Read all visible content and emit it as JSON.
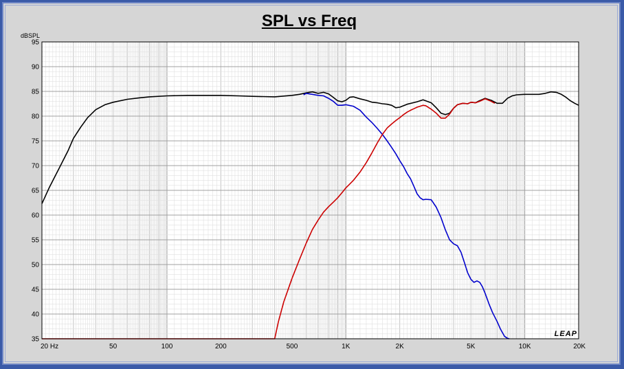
{
  "chart_data": {
    "type": "line",
    "title": "SPL vs Freq",
    "ylabel": "dBSPL",
    "xlabel": "",
    "xscale": "log",
    "xlim": [
      20,
      20000
    ],
    "ylim": [
      35,
      95
    ],
    "grid": true,
    "watermark": "LEAP",
    "background": "#ffffff",
    "yticks": [
      35,
      40,
      45,
      50,
      55,
      60,
      65,
      70,
      75,
      80,
      85,
      90,
      95
    ],
    "xticks": [
      {
        "value": 20,
        "label": "20  Hz"
      },
      {
        "value": 50,
        "label": "50"
      },
      {
        "value": 100,
        "label": "100"
      },
      {
        "value": 200,
        "label": "200"
      },
      {
        "value": 500,
        "label": "500"
      },
      {
        "value": 1000,
        "label": "1K"
      },
      {
        "value": 2000,
        "label": "2K"
      },
      {
        "value": 5000,
        "label": "5K"
      },
      {
        "value": 10000,
        "label": "10K"
      },
      {
        "value": 20000,
        "label": "20K"
      }
    ],
    "series": [
      {
        "color": "#000000",
        "x": [
          20,
          22,
          25,
          28,
          30,
          33,
          36,
          40,
          45,
          50,
          60,
          70,
          80,
          100,
          130,
          160,
          200,
          250,
          300,
          400,
          500,
          550,
          600,
          650,
          700,
          750,
          800,
          850,
          900,
          950,
          1000,
          1050,
          1100,
          1200,
          1300,
          1400,
          1500,
          1600,
          1700,
          1800,
          1900,
          2000,
          2200,
          2500,
          2700,
          3000,
          3200,
          3400,
          3600,
          3800,
          4000,
          4200,
          4500,
          4800,
          5000,
          5300,
          5500,
          6000,
          6500,
          7000,
          7500,
          8000,
          8500,
          9000,
          10000,
          11000,
          12000,
          13000,
          14000,
          15000,
          16000,
          17000,
          18000,
          19000,
          20000
        ],
        "y": [
          62.3,
          65.6,
          69.5,
          73,
          75.5,
          77.8,
          79.7,
          81.3,
          82.3,
          82.8,
          83.4,
          83.7,
          83.9,
          84.1,
          84.2,
          84.2,
          84.2,
          84.1,
          84,
          83.9,
          84.2,
          84.4,
          84.7,
          84.9,
          84.6,
          84.8,
          84.5,
          83.8,
          83.1,
          82.9,
          83.2,
          83.8,
          83.9,
          83.5,
          83.2,
          82.8,
          82.7,
          82.5,
          82.4,
          82.2,
          81.7,
          81.8,
          82.4,
          82.9,
          83.3,
          82.7,
          81.7,
          80.6,
          80.3,
          80.6,
          81.6,
          82.3,
          82.6,
          82.5,
          82.8,
          82.7,
          83,
          83.6,
          83.2,
          82.6,
          82.6,
          83.6,
          84.1,
          84.3,
          84.4,
          84.4,
          84.4,
          84.6,
          84.9,
          84.8,
          84.4,
          83.8,
          83.1,
          82.6,
          82.2
        ]
      },
      {
        "color": "#0000cc",
        "x": [
          580,
          600,
          650,
          700,
          750,
          800,
          850,
          900,
          950,
          1000,
          1100,
          1200,
          1300,
          1400,
          1500,
          1600,
          1700,
          1800,
          1900,
          2000,
          2100,
          2200,
          2300,
          2400,
          2500,
          2600,
          2700,
          2800,
          3000,
          3200,
          3400,
          3600,
          3800,
          4000,
          4200,
          4400,
          4600,
          4800,
          5000,
          5200,
          5400,
          5600,
          5800,
          6000,
          6300,
          6600,
          7000,
          7300,
          7700,
          8000,
          8200
        ],
        "y": [
          84.3,
          84.6,
          84.4,
          84.2,
          84.1,
          83.6,
          83,
          82.2,
          82.2,
          82.3,
          82,
          81.2,
          79.8,
          78.7,
          77.5,
          76.3,
          75,
          73.7,
          72.4,
          71,
          69.8,
          68.4,
          67.3,
          65.8,
          64.3,
          63.5,
          63.1,
          63.2,
          63.1,
          61.6,
          59.5,
          57,
          55,
          54.2,
          53.8,
          52.5,
          50.4,
          48.3,
          47,
          46.4,
          46.7,
          46.4,
          45.5,
          44.2,
          42.1,
          40.3,
          38.5,
          37,
          35.5,
          35.1,
          35
        ]
      },
      {
        "color": "#cc0000",
        "x": [
          20,
          400,
          420,
          450,
          500,
          550,
          600,
          650,
          700,
          750,
          800,
          850,
          900,
          950,
          1000,
          1100,
          1200,
          1300,
          1400,
          1500,
          1600,
          1700,
          1800,
          1900,
          2000,
          2100,
          2200,
          2300,
          2400,
          2500,
          2600,
          2700,
          2800,
          3000,
          3200,
          3400,
          3600,
          3800,
          4000,
          4200,
          4500,
          4800,
          5000,
          5300,
          5600,
          6000,
          6400,
          6800
        ],
        "y": [
          35,
          35,
          38.5,
          42.5,
          47.2,
          51,
          54.3,
          57.1,
          59,
          60.6,
          61.7,
          62.6,
          63.5,
          64.5,
          65.5,
          67,
          68.7,
          70.6,
          72.6,
          74.6,
          76.3,
          77.6,
          78.4,
          79.1,
          79.7,
          80.3,
          80.8,
          81.2,
          81.5,
          81.8,
          82,
          82.2,
          82.1,
          81.4,
          80.6,
          79.6,
          79.6,
          80.4,
          81.6,
          82.3,
          82.6,
          82.5,
          82.8,
          82.7,
          83,
          83.5,
          83.1,
          82.6
        ]
      }
    ]
  }
}
